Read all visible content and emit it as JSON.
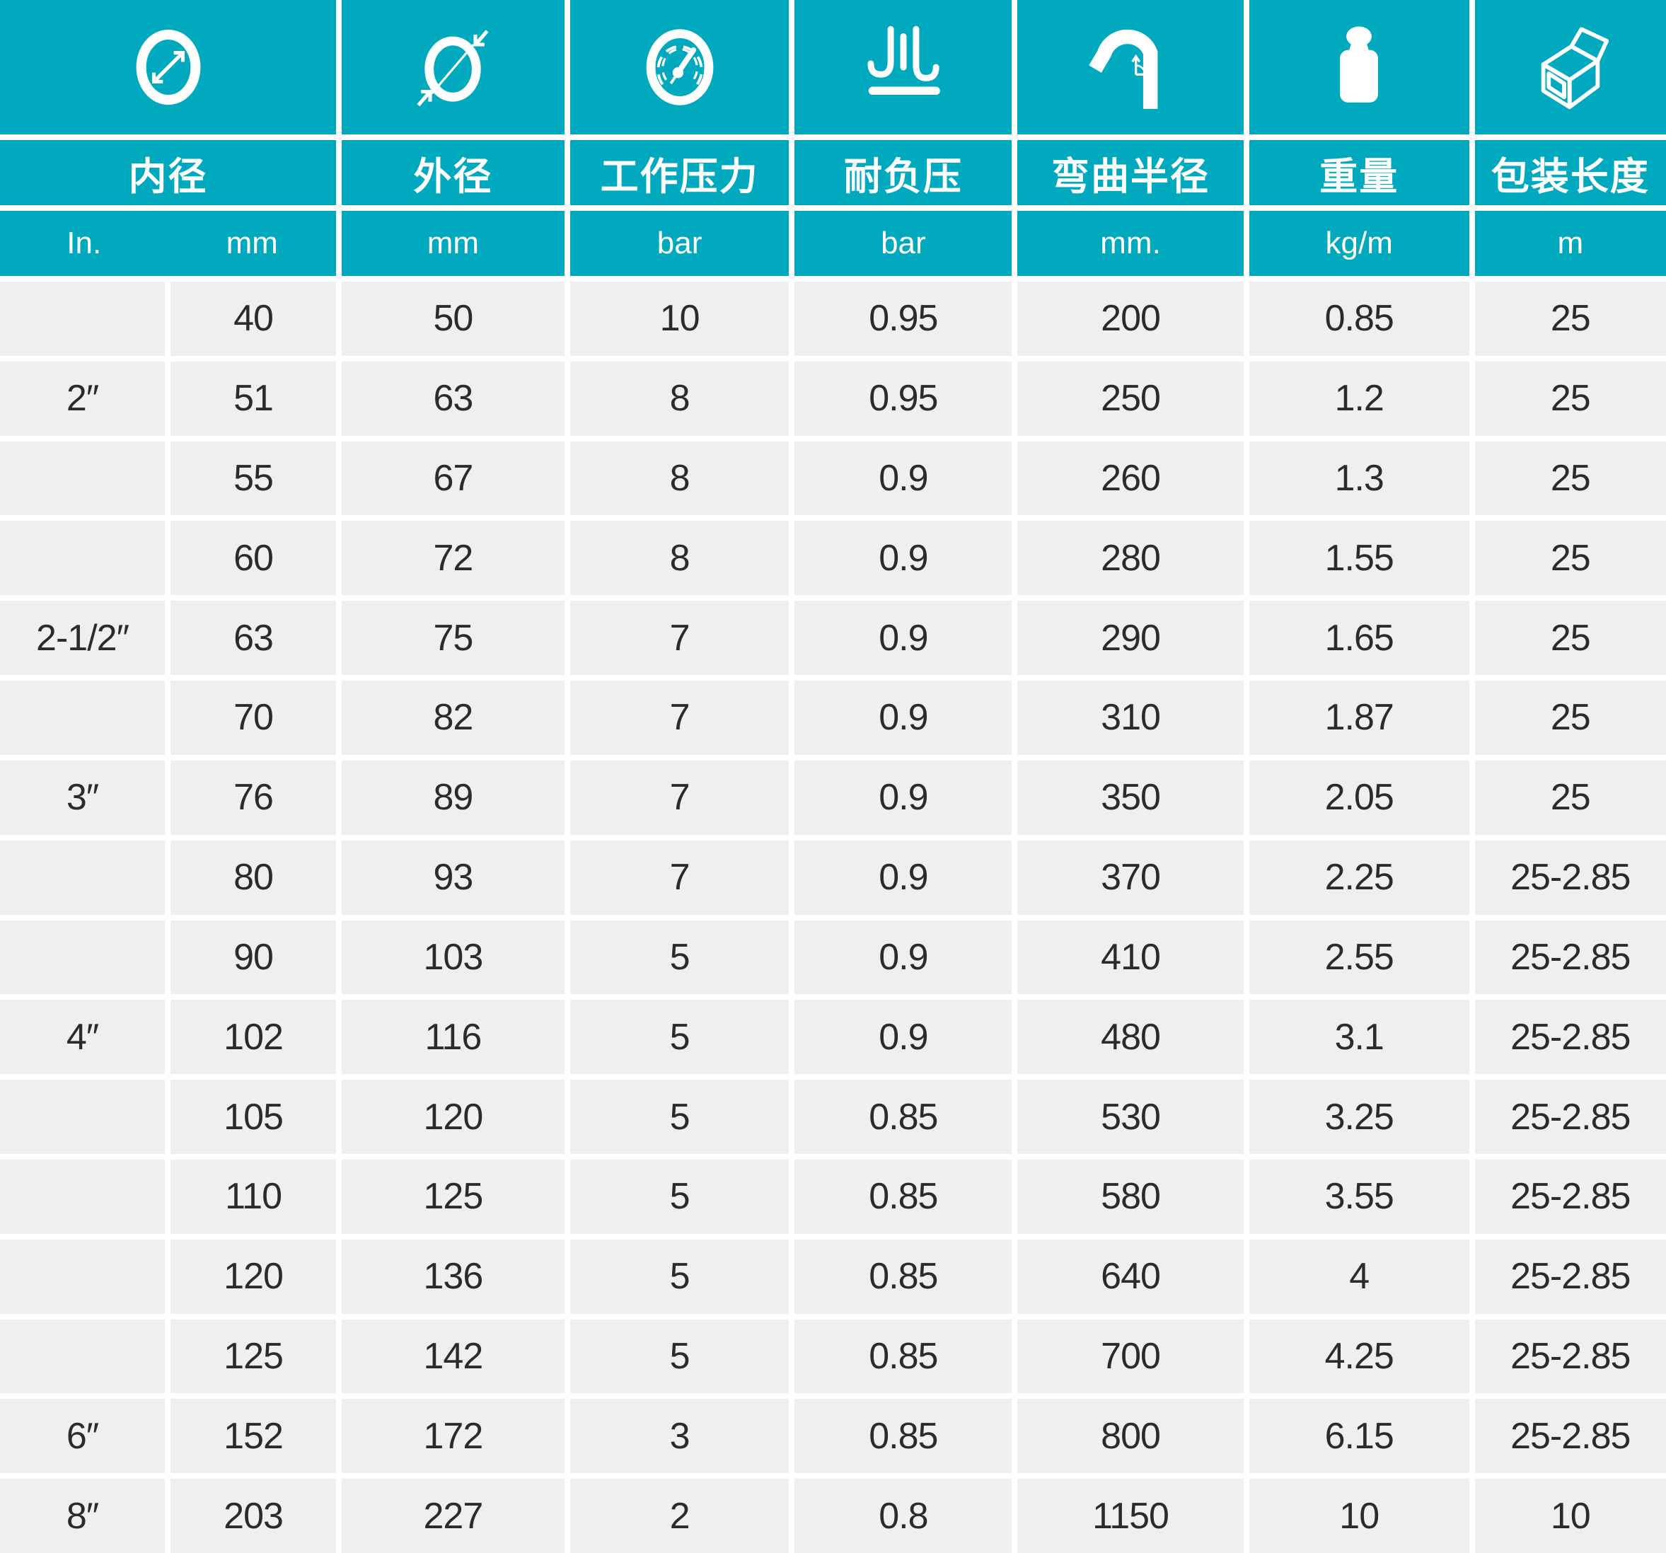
{
  "table": {
    "columns": [
      {
        "icon": "inner-diameter-icon",
        "label": "内径",
        "units": [
          "In.",
          "mm"
        ]
      },
      {
        "icon": "outer-diameter-icon",
        "label": "外径",
        "units": [
          "mm"
        ]
      },
      {
        "icon": "working-pressure-icon",
        "label": "工作压力",
        "units": [
          "bar"
        ]
      },
      {
        "icon": "vacuum-resistance-icon",
        "label": "耐负压",
        "units": [
          "bar"
        ]
      },
      {
        "icon": "bend-radius-icon",
        "label": "弯曲半径",
        "units": [
          "mm."
        ]
      },
      {
        "icon": "weight-icon",
        "label": "重量",
        "units": [
          "kg/m"
        ]
      },
      {
        "icon": "package-length-icon",
        "label": "包装长度",
        "units": [
          "m"
        ]
      }
    ],
    "rows": [
      [
        "",
        "40",
        "50",
        "10",
        "0.95",
        "200",
        "0.85",
        "25"
      ],
      [
        "2″",
        "51",
        "63",
        "8",
        "0.95",
        "250",
        "1.2",
        "25"
      ],
      [
        "",
        "55",
        "67",
        "8",
        "0.9",
        "260",
        "1.3",
        "25"
      ],
      [
        "",
        "60",
        "72",
        "8",
        "0.9",
        "280",
        "1.55",
        "25"
      ],
      [
        "2-1/2″",
        "63",
        "75",
        "7",
        "0.9",
        "290",
        "1.65",
        "25"
      ],
      [
        "",
        "70",
        "82",
        "7",
        "0.9",
        "310",
        "1.87",
        "25"
      ],
      [
        "3″",
        "76",
        "89",
        "7",
        "0.9",
        "350",
        "2.05",
        "25"
      ],
      [
        "",
        "80",
        "93",
        "7",
        "0.9",
        "370",
        "2.25",
        "25-2.85"
      ],
      [
        "",
        "90",
        "103",
        "5",
        "0.9",
        "410",
        "2.55",
        "25-2.85"
      ],
      [
        "4″",
        "102",
        "116",
        "5",
        "0.9",
        "480",
        "3.1",
        "25-2.85"
      ],
      [
        "",
        "105",
        "120",
        "5",
        "0.85",
        "530",
        "3.25",
        "25-2.85"
      ],
      [
        "",
        "110",
        "125",
        "5",
        "0.85",
        "580",
        "3.55",
        "25-2.85"
      ],
      [
        "",
        "120",
        "136",
        "5",
        "0.85",
        "640",
        "4",
        "25-2.85"
      ],
      [
        "",
        "125",
        "142",
        "5",
        "0.85",
        "700",
        "4.25",
        "25-2.85"
      ],
      [
        "6″",
        "152",
        "172",
        "3",
        "0.85",
        "800",
        "6.15",
        "25-2.85"
      ],
      [
        "8″",
        "203",
        "227",
        "2",
        "0.8",
        "1150",
        "10",
        "10"
      ]
    ]
  },
  "colors": {
    "accent_teal": "#00a9bd",
    "cell_gray": "#efefef",
    "text_dark": "#2b2b2b"
  }
}
